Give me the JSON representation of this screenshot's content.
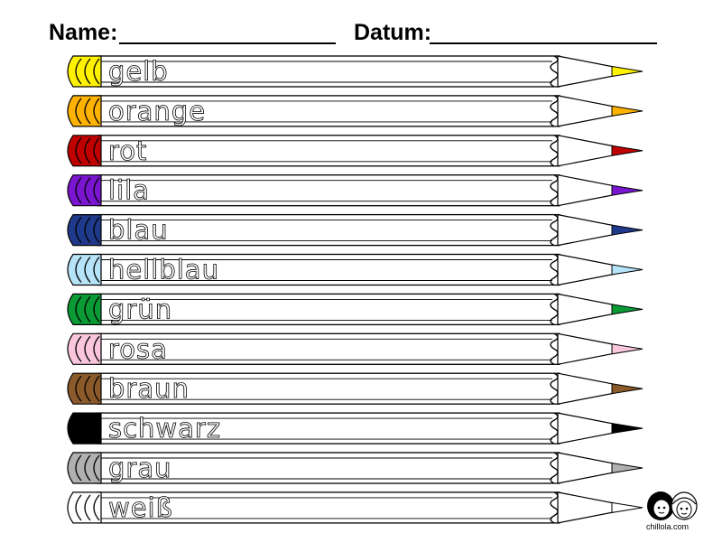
{
  "header": {
    "name_label": "Name:",
    "date_label": "Datum:"
  },
  "pencils": [
    {
      "word": "gelb",
      "color": "#FFF200"
    },
    {
      "word": "orange",
      "color": "#FFB300"
    },
    {
      "word": "rot",
      "color": "#C00000"
    },
    {
      "word": "lila",
      "color": "#7A16D0"
    },
    {
      "word": "blau",
      "color": "#1F3A8A"
    },
    {
      "word": "hellblau",
      "color": "#B6E3F8"
    },
    {
      "word": "grün",
      "color": "#0A9A36"
    },
    {
      "word": "rosa",
      "color": "#F9C6DC"
    },
    {
      "word": "braun",
      "color": "#8A5A2B"
    },
    {
      "word": "schwarz",
      "color": "#000000"
    },
    {
      "word": "grau",
      "color": "#B0B0B0"
    },
    {
      "word": "weiß",
      "color": "#FFFFFF"
    }
  ],
  "logo": {
    "text": "chillola.com",
    "icon": "two-girls-logo-icon"
  }
}
